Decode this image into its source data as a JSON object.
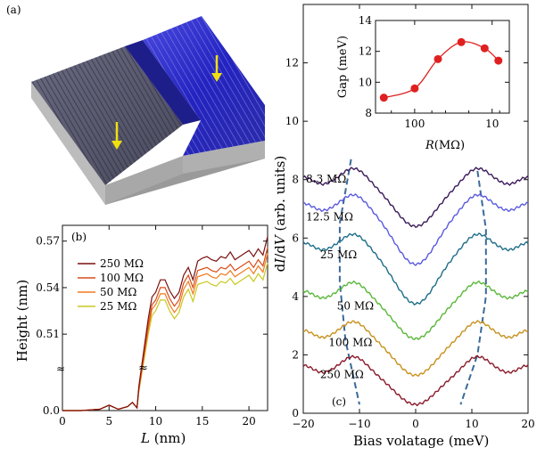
{
  "panel_a": {
    "label": "(a)"
  },
  "panel_b": {
    "label": "(b)",
    "break_marker": "≈",
    "chart_data": {
      "type": "line",
      "xlabel": "L (nm)",
      "ylabel": "Height (nm)",
      "xlim": [
        0,
        22
      ],
      "x_ticks": [
        "0",
        "5",
        "10",
        "15",
        "20"
      ],
      "y_ticks": [
        "0.0",
        "0.51",
        "0.54",
        "0.57"
      ],
      "legend_position": "upper-left",
      "series": [
        {
          "name": "250 MΩ",
          "color": "#7a1010",
          "x": [
            0,
            2,
            4,
            5,
            6,
            7,
            7.5,
            8,
            8.2,
            9.2,
            9.6,
            10,
            10.5,
            11,
            11.5,
            12,
            12.5,
            13,
            13.5,
            14,
            14.5,
            15,
            15.5,
            16,
            16.5,
            17,
            17.5,
            18,
            18.5,
            19,
            19.5,
            20,
            20.5,
            21,
            21.5,
            22
          ],
          "y": [
            0.0,
            0.0,
            0.001,
            0.004,
            0.001,
            0.003,
            0.006,
            0.002,
            0.018,
            0.52,
            0.534,
            0.537,
            0.545,
            0.545,
            0.538,
            0.533,
            0.537,
            0.548,
            0.553,
            0.545,
            0.557,
            0.559,
            0.56,
            0.558,
            0.557,
            0.56,
            0.559,
            0.563,
            0.558,
            0.56,
            0.562,
            0.564,
            0.56,
            0.565,
            0.561,
            0.573
          ]
        },
        {
          "name": "100 MΩ",
          "color": "#d94b18",
          "x": [
            0,
            2,
            4,
            5,
            6,
            7,
            7.5,
            8,
            8.2,
            9.2,
            9.6,
            10,
            10.5,
            11,
            11.5,
            12,
            12.5,
            13,
            13.5,
            14,
            14.5,
            15,
            15.5,
            16,
            16.5,
            17,
            17.5,
            18,
            18.5,
            19,
            19.5,
            20,
            20.5,
            21,
            21.5,
            22
          ],
          "y": [
            0.0,
            0.0,
            0.001,
            0.004,
            0.001,
            0.003,
            0.006,
            0.002,
            0.016,
            0.516,
            0.529,
            0.532,
            0.54,
            0.54,
            0.533,
            0.528,
            0.532,
            0.543,
            0.548,
            0.54,
            0.551,
            0.552,
            0.553,
            0.551,
            0.55,
            0.553,
            0.552,
            0.555,
            0.551,
            0.553,
            0.555,
            0.557,
            0.553,
            0.558,
            0.554,
            0.566
          ]
        },
        {
          "name": "50 MΩ",
          "color": "#f07a1e",
          "x": [
            0,
            2,
            4,
            5,
            6,
            7,
            7.5,
            8,
            8.2,
            9.2,
            9.6,
            10,
            10.5,
            11,
            11.5,
            12,
            12.5,
            13,
            13.5,
            14,
            14.5,
            15,
            15.5,
            16,
            16.5,
            17,
            17.5,
            18,
            18.5,
            19,
            19.5,
            20,
            20.5,
            21,
            21.5,
            22
          ],
          "y": [
            0.0,
            0.0,
            0.001,
            0.004,
            0.001,
            0.003,
            0.006,
            0.002,
            0.015,
            0.513,
            0.526,
            0.529,
            0.536,
            0.536,
            0.529,
            0.524,
            0.528,
            0.539,
            0.544,
            0.536,
            0.547,
            0.548,
            0.549,
            0.547,
            0.546,
            0.549,
            0.548,
            0.551,
            0.547,
            0.549,
            0.551,
            0.553,
            0.549,
            0.554,
            0.55,
            0.562
          ]
        },
        {
          "name": "25 MΩ",
          "color": "#c8c820",
          "x": [
            0,
            2,
            4,
            5,
            6,
            7,
            7.5,
            8,
            8.2,
            9.2,
            9.6,
            10,
            10.5,
            11,
            11.5,
            12,
            12.5,
            13,
            13.5,
            14,
            14.5,
            15,
            15.5,
            16,
            16.5,
            17,
            17.5,
            18,
            18.5,
            19,
            19.5,
            20,
            20.5,
            21,
            21.5,
            22
          ],
          "y": [
            0.0,
            0.0,
            0.001,
            0.004,
            0.001,
            0.003,
            0.006,
            0.002,
            0.014,
            0.51,
            0.522,
            0.525,
            0.532,
            0.532,
            0.525,
            0.52,
            0.524,
            0.534,
            0.539,
            0.531,
            0.542,
            0.543,
            0.544,
            0.542,
            0.541,
            0.544,
            0.543,
            0.546,
            0.542,
            0.544,
            0.546,
            0.548,
            0.544,
            0.549,
            0.545,
            0.556
          ]
        }
      ]
    }
  },
  "panel_c": {
    "label": "(c)",
    "chart_data": {
      "type": "line",
      "xlabel": "Bias volatage (meV)",
      "ylabel": "dI/dV (arb. units)",
      "xlim": [
        -20,
        20
      ],
      "ylim": [
        0,
        14
      ],
      "x_ticks": [
        "−20",
        "−10",
        "0",
        "10",
        "20"
      ],
      "y_ticks": [
        "0",
        "2",
        "4",
        "6",
        "8",
        "10",
        "12"
      ],
      "series": [
        {
          "name": "8.3 MΩ",
          "color": "#3b1a5a",
          "offset": 6.7,
          "amp": 1.45
        },
        {
          "name": "12.5 MΩ",
          "color": "#5a5ae0",
          "offset": 5.4,
          "amp": 1.85
        },
        {
          "name": "25 MΩ",
          "color": "#1e6e8a",
          "offset": 4.05,
          "amp": 1.85
        },
        {
          "name": "50 MΩ",
          "color": "#5ab83a",
          "offset": 2.85,
          "amp": 1.4
        },
        {
          "name": "100 MΩ",
          "color": "#c8921e",
          "offset": 1.6,
          "amp": 1.3
        },
        {
          "name": "250 MΩ",
          "color": "#8a1a2a",
          "offset": 0.6,
          "amp": 1.1
        }
      ],
      "dashed_guides": {
        "left": [
          [
            -11.5,
            8.7
          ],
          [
            -13.5,
            6.5
          ],
          [
            -13.5,
            4.5
          ],
          [
            -12.5,
            2.5
          ],
          [
            -10,
            0.3
          ]
        ],
        "right": [
          [
            11,
            8.3
          ],
          [
            12.5,
            6.3
          ],
          [
            12.5,
            4.0
          ],
          [
            11,
            2.0
          ],
          [
            8,
            0.3
          ]
        ]
      }
    },
    "inset": {
      "chart_data": {
        "type": "line",
        "xlabel": "R (MΩ)",
        "ylabel": "Gap (meV)",
        "x_scale": "log-reversed",
        "x_ticks": [
          "100",
          "10"
        ],
        "y_ticks": [
          "8",
          "10",
          "12",
          "14"
        ],
        "ylim": [
          8,
          14
        ],
        "color": "#e02020",
        "points": [
          {
            "R": 250,
            "gap": 9.0
          },
          {
            "R": 100,
            "gap": 9.6
          },
          {
            "R": 50,
            "gap": 11.5
          },
          {
            "R": 25,
            "gap": 12.6
          },
          {
            "R": 12.5,
            "gap": 12.2
          },
          {
            "R": 8.3,
            "gap": 11.4
          }
        ]
      }
    }
  }
}
